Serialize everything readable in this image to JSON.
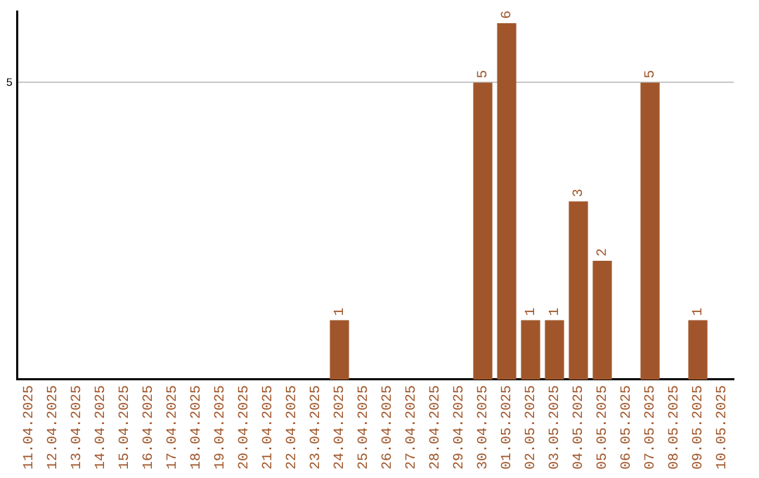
{
  "chart_data": {
    "type": "bar",
    "categories": [
      "11.04.2025",
      "12.04.2025",
      "13.04.2025",
      "14.04.2025",
      "15.04.2025",
      "16.04.2025",
      "17.04.2025",
      "18.04.2025",
      "19.04.2025",
      "20.04.2025",
      "21.04.2025",
      "22.04.2025",
      "23.04.2025",
      "24.04.2025",
      "25.04.2025",
      "26.04.2025",
      "27.04.2025",
      "28.04.2025",
      "29.04.2025",
      "30.04.2025",
      "01.05.2025",
      "02.05.2025",
      "03.05.2025",
      "04.05.2025",
      "05.05.2025",
      "06.05.2025",
      "07.05.2025",
      "08.05.2025",
      "09.05.2025",
      "10.05.2025"
    ],
    "values": [
      null,
      null,
      null,
      null,
      null,
      null,
      null,
      null,
      null,
      null,
      null,
      null,
      null,
      1,
      null,
      null,
      null,
      null,
      null,
      5,
      6,
      1,
      1,
      3,
      2,
      null,
      5,
      null,
      1,
      null
    ],
    "value_labels": [
      null,
      null,
      null,
      null,
      null,
      null,
      null,
      null,
      null,
      null,
      null,
      null,
      null,
      "1",
      null,
      null,
      null,
      null,
      null,
      "5",
      "6",
      "1",
      "1",
      "3",
      "2",
      null,
      "5",
      null,
      "1",
      null
    ],
    "color": "#a0562a",
    "ylim": [
      0,
      6.2
    ],
    "yticks": [
      5
    ],
    "grid": "y",
    "legend": false
  }
}
